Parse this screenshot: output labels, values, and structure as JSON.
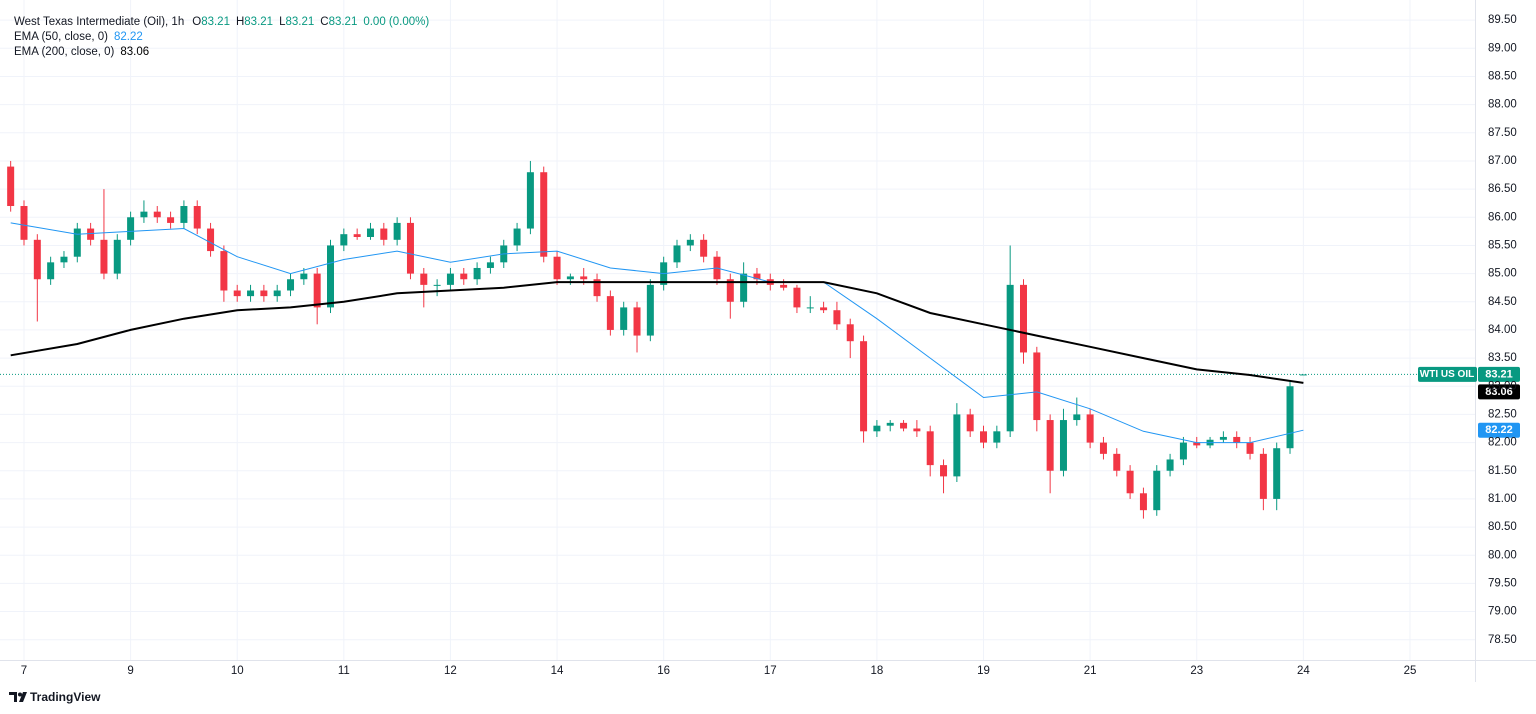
{
  "chart_data": {
    "type": "candlestick",
    "title": "West Texas Intermediate (Oil), 1h",
    "ohlc_keys": [
      "O",
      "H",
      "L",
      "C"
    ],
    "change": "0.00 (0.00%)",
    "symbol_tag": "WTI US OIL",
    "brand": "TradingView",
    "up_color": "#089981",
    "down_color": "#f23645",
    "grid": true,
    "xlim": [
      -0.225,
      13.61
    ],
    "ylim": [
      78.14,
      89.68
    ],
    "xticks": [
      {
        "value": 0,
        "label": "7"
      },
      {
        "value": 1,
        "label": "9"
      },
      {
        "value": 2,
        "label": "10"
      },
      {
        "value": 3,
        "label": "11"
      },
      {
        "value": 4,
        "label": "12"
      },
      {
        "value": 5,
        "label": "14"
      },
      {
        "value": 6,
        "label": "16"
      },
      {
        "value": 7,
        "label": "17"
      },
      {
        "value": 8,
        "label": "18"
      },
      {
        "value": 9,
        "label": "19"
      },
      {
        "value": 10,
        "label": "21"
      },
      {
        "value": 11,
        "label": "23"
      },
      {
        "value": 12,
        "label": "24"
      },
      {
        "value": 13,
        "label": "25"
      }
    ],
    "yticks": [
      {
        "value": 78.5,
        "label": "78.50"
      },
      {
        "value": 79,
        "label": "79.00"
      },
      {
        "value": 79.5,
        "label": "79.50"
      },
      {
        "value": 80,
        "label": "80.00"
      },
      {
        "value": 80.5,
        "label": "80.50"
      },
      {
        "value": 81,
        "label": "81.00"
      },
      {
        "value": 81.5,
        "label": "81.50"
      },
      {
        "value": 82,
        "label": "82.00"
      },
      {
        "value": 82.5,
        "label": "82.50"
      },
      {
        "value": 83,
        "label": "83.00"
      },
      {
        "value": 83.5,
        "label": "83.50"
      },
      {
        "value": 84,
        "label": "84.00"
      },
      {
        "value": 84.5,
        "label": "84.50"
      },
      {
        "value": 85,
        "label": "85.00"
      },
      {
        "value": 85.5,
        "label": "85.50"
      },
      {
        "value": 86,
        "label": "86.00"
      },
      {
        "value": 86.5,
        "label": "86.50"
      },
      {
        "value": 87,
        "label": "87.00"
      },
      {
        "value": 87.5,
        "label": "87.50"
      },
      {
        "value": 88,
        "label": "88.00"
      },
      {
        "value": 88.5,
        "label": "88.50"
      },
      {
        "value": 89,
        "label": "89.00"
      },
      {
        "value": 89.5,
        "label": "89.50"
      }
    ],
    "x": [
      -0.125,
      0,
      0.125,
      0.25,
      0.375,
      0.5,
      0.625,
      0.75,
      0.875,
      1,
      1.125,
      1.25,
      1.375,
      1.5,
      1.625,
      1.75,
      1.875,
      2,
      2.125,
      2.25,
      2.375,
      2.5,
      2.625,
      2.75,
      2.875,
      3,
      3.125,
      3.25,
      3.375,
      3.5,
      3.625,
      3.75,
      3.875,
      4,
      4.125,
      4.25,
      4.375,
      4.5,
      4.625,
      4.75,
      4.875,
      5,
      5.125,
      5.25,
      5.375,
      5.5,
      5.625,
      5.75,
      5.875,
      6,
      6.125,
      6.25,
      6.375,
      6.5,
      6.625,
      6.75,
      6.875,
      7,
      7.125,
      7.25,
      7.375,
      7.5,
      7.625,
      7.75,
      7.875,
      8,
      8.125,
      8.25,
      8.375,
      8.5,
      8.625,
      8.75,
      8.875,
      9,
      9.125,
      9.25,
      9.375,
      9.5,
      9.625,
      9.75,
      9.875,
      10,
      10.125,
      10.25,
      10.375,
      10.5,
      10.625,
      10.75,
      10.875,
      11,
      11.125,
      11.25,
      11.375,
      11.5,
      11.625,
      11.75,
      11.875,
      12
    ],
    "open": [
      86.9,
      86.2,
      85.6,
      84.9,
      85.2,
      85.3,
      85.8,
      85.6,
      85.0,
      85.6,
      86.0,
      86.1,
      86.0,
      85.9,
      86.2,
      85.8,
      85.4,
      84.7,
      84.6,
      84.7,
      84.6,
      84.7,
      84.9,
      85.0,
      84.4,
      85.5,
      85.7,
      85.65,
      85.8,
      85.6,
      85.9,
      85.0,
      84.8,
      84.8,
      85.0,
      84.9,
      85.1,
      85.2,
      85.5,
      85.8,
      86.8,
      85.3,
      84.9,
      84.95,
      84.9,
      84.6,
      84.0,
      84.4,
      83.9,
      84.8,
      85.2,
      85.5,
      85.6,
      85.3,
      84.9,
      84.5,
      85.0,
      84.9,
      84.8,
      84.75,
      84.4,
      84.4,
      84.35,
      84.1,
      83.8,
      82.2,
      82.3,
      82.35,
      82.25,
      82.2,
      81.6,
      81.4,
      82.5,
      82.2,
      82.0,
      82.2,
      84.8,
      83.6,
      82.4,
      81.5,
      82.4,
      82.5,
      82.0,
      81.8,
      81.5,
      81.1,
      80.8,
      81.5,
      81.7,
      82.0,
      81.95,
      82.05,
      82.1,
      82.0,
      81.8,
      81.0,
      81.9,
      83.21
    ],
    "high": [
      87.0,
      86.3,
      85.7,
      85.3,
      85.4,
      85.9,
      85.9,
      86.5,
      85.7,
      86.1,
      86.3,
      86.2,
      86.1,
      86.3,
      86.3,
      85.9,
      85.5,
      84.8,
      84.8,
      84.8,
      84.8,
      85.0,
      85.1,
      85.1,
      85.6,
      85.8,
      85.8,
      85.9,
      85.9,
      86.0,
      86.0,
      85.1,
      84.9,
      85.1,
      85.1,
      85.2,
      85.3,
      85.6,
      85.9,
      87.0,
      86.9,
      85.4,
      85.0,
      85.1,
      85.0,
      84.7,
      84.5,
      84.5,
      84.9,
      85.3,
      85.6,
      85.7,
      85.7,
      85.4,
      85.0,
      85.2,
      85.1,
      85.0,
      84.9,
      84.8,
      84.6,
      84.5,
      84.5,
      84.2,
      83.9,
      82.4,
      82.4,
      82.4,
      82.4,
      82.3,
      81.7,
      82.7,
      82.6,
      82.3,
      82.3,
      85.5,
      84.9,
      83.7,
      82.5,
      82.6,
      82.8,
      82.6,
      82.1,
      81.9,
      81.6,
      81.2,
      81.6,
      81.8,
      82.1,
      82.1,
      82.1,
      82.2,
      82.2,
      82.1,
      81.9,
      82.0,
      83.1,
      83.21
    ],
    "low": [
      86.1,
      85.5,
      84.15,
      84.8,
      85.1,
      85.2,
      85.5,
      84.9,
      84.9,
      85.5,
      85.9,
      85.9,
      85.8,
      85.8,
      85.7,
      85.3,
      84.5,
      84.5,
      84.5,
      84.5,
      84.5,
      84.6,
      84.8,
      84.1,
      84.3,
      85.4,
      85.6,
      85.6,
      85.5,
      85.5,
      84.9,
      84.4,
      84.6,
      84.7,
      84.8,
      84.8,
      85.0,
      85.1,
      85.4,
      85.7,
      85.2,
      84.8,
      84.8,
      84.8,
      84.5,
      83.9,
      83.9,
      83.6,
      83.8,
      84.7,
      85.1,
      85.4,
      85.2,
      84.8,
      84.2,
      84.4,
      84.8,
      84.7,
      84.7,
      84.3,
      84.3,
      84.3,
      84.0,
      83.5,
      82.0,
      82.1,
      82.2,
      82.2,
      82.1,
      81.4,
      81.1,
      81.3,
      82.1,
      81.9,
      81.9,
      82.1,
      83.4,
      82.2,
      81.1,
      81.4,
      82.3,
      81.9,
      81.7,
      81.4,
      81.0,
      80.65,
      80.7,
      81.4,
      81.6,
      81.9,
      81.9,
      82.0,
      81.9,
      81.7,
      80.8,
      80.8,
      81.8,
      83.21
    ],
    "close": [
      86.2,
      85.6,
      84.9,
      85.2,
      85.3,
      85.8,
      85.6,
      85.0,
      85.6,
      86.0,
      86.1,
      86.0,
      85.9,
      86.2,
      85.8,
      85.4,
      84.7,
      84.6,
      84.7,
      84.6,
      84.7,
      84.9,
      85.0,
      84.4,
      85.5,
      85.7,
      85.65,
      85.8,
      85.6,
      85.9,
      85.0,
      84.8,
      84.8,
      85.0,
      84.9,
      85.1,
      85.2,
      85.5,
      85.8,
      86.8,
      85.3,
      84.9,
      84.95,
      84.9,
      84.6,
      84.0,
      84.4,
      83.9,
      84.8,
      85.2,
      85.5,
      85.6,
      85.3,
      84.9,
      84.5,
      85.0,
      84.9,
      84.8,
      84.75,
      84.4,
      84.4,
      84.35,
      84.1,
      83.8,
      82.2,
      82.3,
      82.35,
      82.25,
      82.2,
      81.6,
      81.4,
      82.5,
      82.2,
      82.0,
      82.2,
      84.8,
      83.6,
      82.4,
      81.5,
      82.4,
      82.5,
      82.0,
      81.8,
      81.5,
      81.1,
      80.8,
      81.5,
      81.7,
      82.0,
      81.95,
      82.05,
      82.1,
      82.0,
      81.8,
      81.0,
      81.9,
      83.0,
      83.21
    ],
    "series": [
      {
        "name": "EMA (50, close, 0)",
        "color": "#2196f3",
        "width": 1,
        "x": [
          -0.125,
          0.5,
          1,
          1.5,
          2,
          2.5,
          3,
          3.5,
          4,
          4.5,
          5,
          5.5,
          6,
          6.5,
          7,
          7.5,
          8,
          8.5,
          9,
          9.5,
          10,
          10.5,
          11,
          11.5,
          12
        ],
        "values": [
          85.9,
          85.7,
          85.75,
          85.8,
          85.3,
          85.0,
          85.25,
          85.4,
          85.2,
          85.35,
          85.4,
          85.1,
          85.0,
          85.1,
          84.85,
          84.85,
          84.2,
          83.5,
          82.8,
          82.9,
          82.6,
          82.2,
          82.0,
          82.0,
          82.22
        ]
      },
      {
        "name": "EMA (200, close, 0)",
        "color": "#000000",
        "width": 2,
        "x": [
          -0.125,
          0.5,
          1,
          1.5,
          2,
          2.5,
          3,
          3.5,
          4,
          4.5,
          5,
          5.5,
          6,
          6.5,
          7,
          7.5,
          8,
          8.5,
          9,
          9.5,
          10,
          10.5,
          11,
          11.5,
          12
        ],
        "values": [
          83.55,
          83.75,
          84.0,
          84.2,
          84.35,
          84.4,
          84.5,
          84.65,
          84.7,
          84.75,
          84.85,
          84.85,
          84.85,
          84.85,
          84.85,
          84.85,
          84.65,
          84.3,
          84.1,
          83.9,
          83.7,
          83.5,
          83.3,
          83.2,
          83.06
        ]
      }
    ]
  }
}
